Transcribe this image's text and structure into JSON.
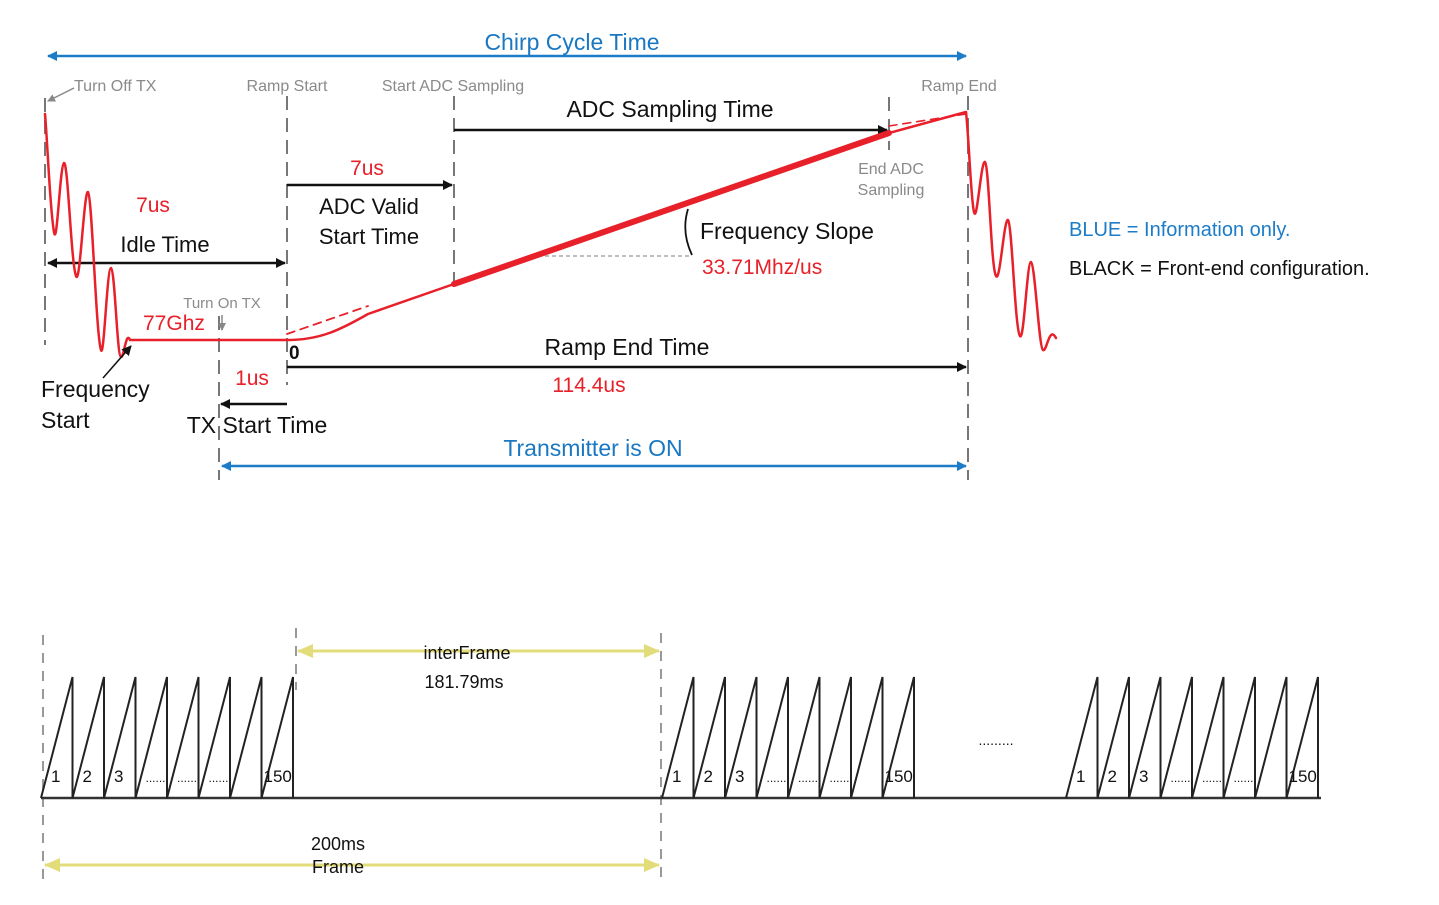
{
  "chirp": {
    "chirp_cycle_time": "Chirp Cycle Time",
    "turn_off_tx": "Turn Off TX",
    "ramp_start": "Ramp Start",
    "start_adc_sampling": "Start ADC Sampling",
    "ramp_end": "Ramp End",
    "adc_sampling_time": "ADC Sampling Time",
    "end_adc_1": "End ADC",
    "end_adc_2": "Sampling",
    "adc_valid_value": "7us",
    "adc_valid_1": "ADC Valid",
    "adc_valid_2": "Start Time",
    "idle_value": "7us",
    "idle_time": "Idle Time",
    "freq_slope": "Frequency Slope",
    "freq_slope_value": "33.71Mhz/us",
    "turn_on_tx": "Turn On TX",
    "start_freq": "77Ghz",
    "zero": "0",
    "ramp_end_time": "Ramp End Time",
    "ramp_end_value": "114.4us",
    "tx_start_value": "1us",
    "freq_start_1": "Frequency",
    "freq_start_2": "Start",
    "tx_start_time": "TX Start Time",
    "transmitter_on": "Transmitter is ON"
  },
  "legend": {
    "blue": "BLUE = Information only.",
    "black": "BLACK = Front-end configuration."
  },
  "frame": {
    "interframe_label": "interFrame",
    "interframe_value": "181.79ms",
    "frame_value": "200ms",
    "frame_label": "Frame",
    "dots": ".........",
    "chirp_labels": [
      "1",
      "2",
      "3",
      "......",
      "......",
      "......",
      "150"
    ]
  },
  "colors": {
    "information": "#1c7cc7",
    "configuration": "#111111",
    "values": "#e8202a",
    "frame_arrows": "#e3dc7a"
  }
}
